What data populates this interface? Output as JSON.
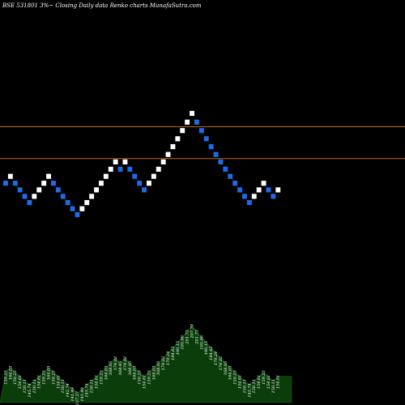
{
  "header": {
    "title": "BSE 531801 3%~  Closing Daily data  Renko  charts MunafaSutra.com"
  },
  "colors": {
    "background": "#000000",
    "up_brick": "#ffffff",
    "down_brick": "#1e6be6",
    "reference_line": "#c0651e",
    "area_fill": "#0b3d0b"
  },
  "chart_data": {
    "type": "renko",
    "title": "BSE 531801 3%~  Closing Daily data  Renko  charts MunafaSutra.com",
    "xlabel": "",
    "ylabel": "",
    "grid": false,
    "reference_lines": [
      198.5,
      176.4
    ],
    "bricks": [
      {
        "dir": "down",
        "value": 159.25
      },
      {
        "dir": "up",
        "value": 164.03
      },
      {
        "dir": "down",
        "value": 159.25
      },
      {
        "dir": "down",
        "value": 154.61
      },
      {
        "dir": "down",
        "value": 150.11
      },
      {
        "dir": "down",
        "value": 145.74
      },
      {
        "dir": "up",
        "value": 150.11
      },
      {
        "dir": "up",
        "value": 154.61
      },
      {
        "dir": "up",
        "value": 159.25
      },
      {
        "dir": "up",
        "value": 164.03
      },
      {
        "dir": "down",
        "value": 159.25
      },
      {
        "dir": "down",
        "value": 154.61
      },
      {
        "dir": "down",
        "value": 150.11
      },
      {
        "dir": "down",
        "value": 145.74
      },
      {
        "dir": "down",
        "value": 141.49
      },
      {
        "dir": "down",
        "value": 137.37
      },
      {
        "dir": "up",
        "value": 141.49
      },
      {
        "dir": "up",
        "value": 145.74
      },
      {
        "dir": "up",
        "value": 150.11
      },
      {
        "dir": "up",
        "value": 154.61
      },
      {
        "dir": "up",
        "value": 159.25
      },
      {
        "dir": "up",
        "value": 164.03
      },
      {
        "dir": "up",
        "value": 168.95
      },
      {
        "dir": "up",
        "value": 174.02
      },
      {
        "dir": "down",
        "value": 168.95
      },
      {
        "dir": "up",
        "value": 174.02
      },
      {
        "dir": "down",
        "value": 168.95
      },
      {
        "dir": "down",
        "value": 164.03
      },
      {
        "dir": "down",
        "value": 159.25
      },
      {
        "dir": "down",
        "value": 154.61
      },
      {
        "dir": "up",
        "value": 159.25
      },
      {
        "dir": "up",
        "value": 164.03
      },
      {
        "dir": "up",
        "value": 168.95
      },
      {
        "dir": "up",
        "value": 174.02
      },
      {
        "dir": "up",
        "value": 179.24
      },
      {
        "dir": "up",
        "value": 184.62
      },
      {
        "dir": "up",
        "value": 190.15
      },
      {
        "dir": "up",
        "value": 195.86
      },
      {
        "dir": "up",
        "value": 201.73
      },
      {
        "dir": "up",
        "value": 207.79
      },
      {
        "dir": "down",
        "value": 201.73
      },
      {
        "dir": "down",
        "value": 195.86
      },
      {
        "dir": "down",
        "value": 190.15
      },
      {
        "dir": "down",
        "value": 184.62
      },
      {
        "dir": "down",
        "value": 179.24
      },
      {
        "dir": "down",
        "value": 174.02
      },
      {
        "dir": "down",
        "value": 168.95
      },
      {
        "dir": "down",
        "value": 164.03
      },
      {
        "dir": "down",
        "value": 159.25
      },
      {
        "dir": "down",
        "value": 154.61
      },
      {
        "dir": "down",
        "value": 150.11
      },
      {
        "dir": "down",
        "value": 145.74
      },
      {
        "dir": "up",
        "value": 150.11
      },
      {
        "dir": "up",
        "value": 154.61
      },
      {
        "dir": "up",
        "value": 159.25
      },
      {
        "dir": "down",
        "value": 154.61
      },
      {
        "dir": "down",
        "value": 150.11
      },
      {
        "dir": "up",
        "value": 154.61
      }
    ]
  }
}
